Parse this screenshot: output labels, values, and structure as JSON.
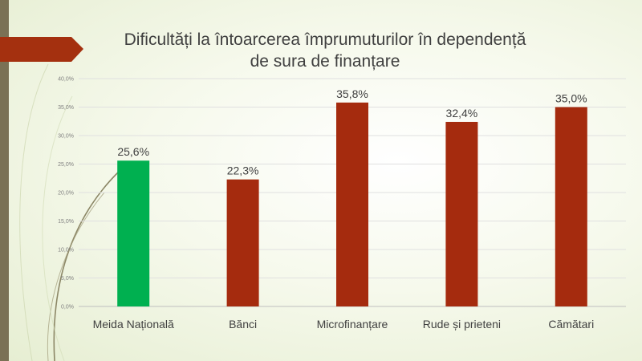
{
  "slide": {
    "accent_color": "#a4300f",
    "sidebar_color": "#7a7155"
  },
  "chart_data": {
    "type": "bar",
    "title_lines": [
      "Dificultăți la întoarcerea împrumuturilor în dependență",
      "de sura de finanțare"
    ],
    "categories": [
      "Meida Națională",
      "Bănci",
      "Microfinanțare",
      "Rude și prieteni",
      "Cămătari"
    ],
    "values": [
      25.6,
      22.3,
      35.8,
      32.4,
      35.0
    ],
    "value_labels": [
      "25,6%",
      "22,3%",
      "35,8%",
      "32,4%",
      "35,0%"
    ],
    "bar_colors": [
      "#00b050",
      "#a52b0e",
      "#a52b0e",
      "#a52b0e",
      "#a52b0e"
    ],
    "ylim": [
      0,
      40
    ],
    "y_ticks": [
      0,
      5,
      10,
      15,
      20,
      25,
      30,
      35,
      40
    ],
    "y_tick_labels": [
      "0,0%",
      "5,0%",
      "10,0%",
      "15,0%",
      "20,0%",
      "25,0%",
      "30,0%",
      "35,0%",
      "40,0%"
    ],
    "grid": true,
    "xlabel": "",
    "ylabel": ""
  }
}
